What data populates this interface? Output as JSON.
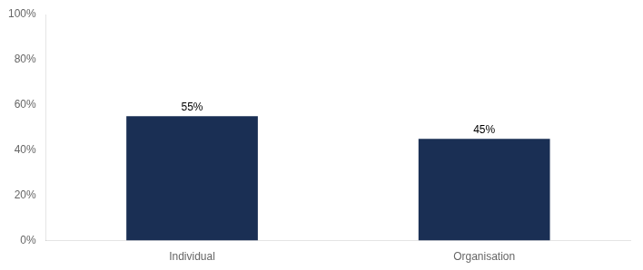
{
  "chart_data": {
    "type": "bar",
    "categories": [
      "Individual",
      "Organisation"
    ],
    "values": [
      55,
      45
    ],
    "value_labels": [
      "55%",
      "45%"
    ],
    "data_labels": true,
    "color": "#1a2f54",
    "ylim": [
      0,
      100
    ],
    "yticks": [
      {
        "value": 0,
        "label": "0%"
      },
      {
        "value": 20,
        "label": "20%"
      },
      {
        "value": 40,
        "label": "40%"
      },
      {
        "value": 60,
        "label": "60%"
      },
      {
        "value": 80,
        "label": "80%"
      },
      {
        "value": 100,
        "label": "100%"
      }
    ],
    "grid": false
  }
}
